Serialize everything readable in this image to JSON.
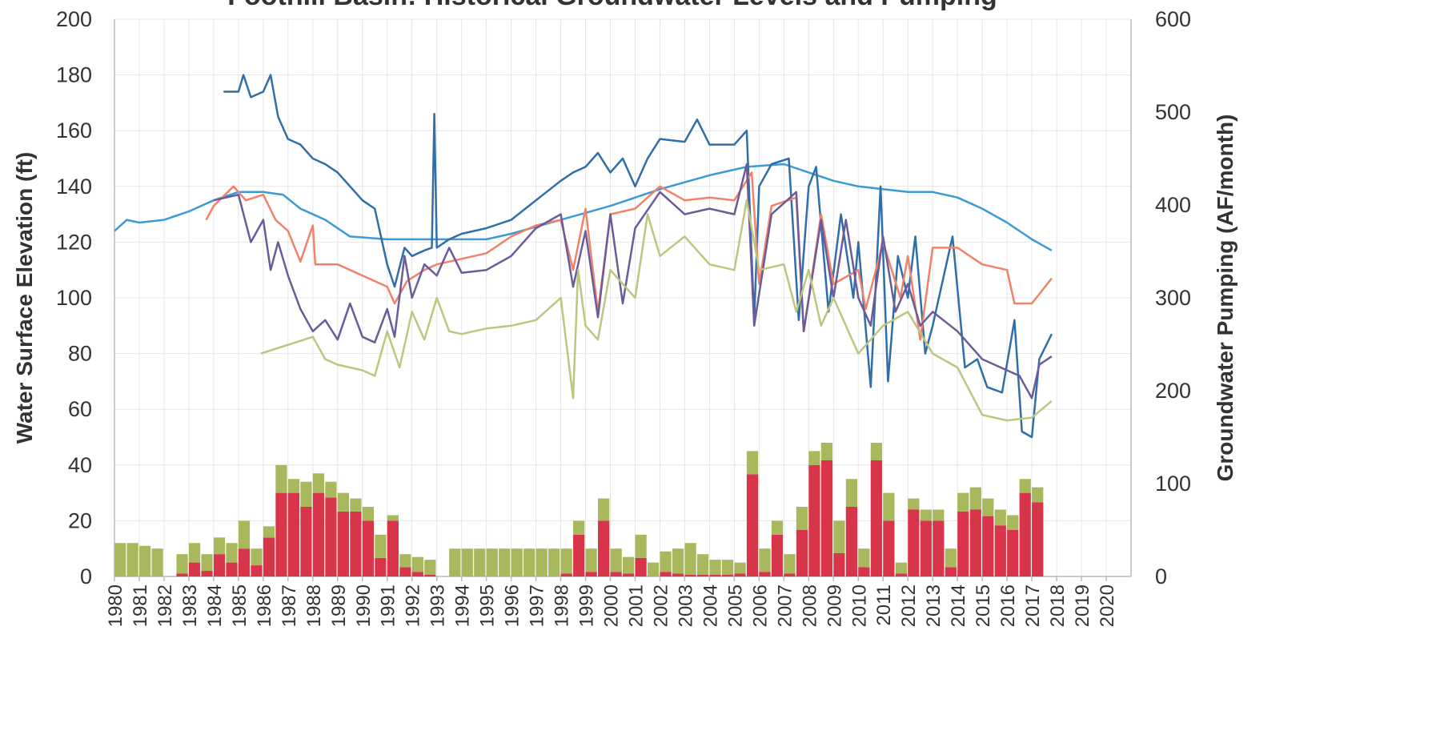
{
  "chart_data": {
    "type": "line",
    "title": "Foothill Basin: Historical Groundwater Levels and Pumping",
    "y_label": "Water Surface Elevation (ft)",
    "y2_label": "Groundwater Pumping (AF/month)",
    "xlim": [
      1980,
      2021
    ],
    "ylim": [
      0,
      200
    ],
    "y2lim": [
      0,
      600
    ],
    "xticks": [
      1980,
      1981,
      1982,
      1983,
      1984,
      1985,
      1986,
      1987,
      1988,
      1989,
      1990,
      1991,
      1992,
      1993,
      1994,
      1995,
      1996,
      1997,
      1998,
      1999,
      2000,
      2001,
      2002,
      2003,
      2004,
      2005,
      2006,
      2007,
      2008,
      2009,
      2010,
      2011,
      2012,
      2013,
      2014,
      2015,
      2016,
      2017,
      2018,
      2019,
      2020
    ],
    "yticks": [
      0,
      20,
      40,
      60,
      80,
      100,
      120,
      140,
      160,
      180,
      200
    ],
    "y2ticks": [
      0,
      100,
      200,
      300,
      400,
      500,
      600
    ],
    "grid": true,
    "series": [
      {
        "type": "bar",
        "axis": "y2",
        "stacked": true,
        "color": "#d8344a",
        "x": [
          1980,
          1980.5,
          1981,
          1981.5,
          1982,
          1982.5,
          1983,
          1983.5,
          1984,
          1984.5,
          1985,
          1985.5,
          1986,
          1986.5,
          1987,
          1987.5,
          1988,
          1988.5,
          1989,
          1989.5,
          1990,
          1990.5,
          1991,
          1991.5,
          1992,
          1992.5,
          1993,
          1993.5,
          1994,
          1994.5,
          1995,
          1995.5,
          1996,
          1996.5,
          1997,
          1997.5,
          1998,
          1998.5,
          1999,
          1999.5,
          2000,
          2000.5,
          2001,
          2001.5,
          2002,
          2002.5,
          2003,
          2003.5,
          2004,
          2004.5,
          2005,
          2005.5,
          2006,
          2006.5,
          2007,
          2007.5,
          2008,
          2008.5,
          2009,
          2009.5,
          2010,
          2010.5,
          2011,
          2011.5,
          2012,
          2012.5,
          2013,
          2013.5,
          2014,
          2014.5,
          2015,
          2015.5,
          2016,
          2016.5,
          2017
        ],
        "values": [
          0,
          0,
          0,
          0,
          0,
          3,
          15,
          6,
          24,
          15,
          30,
          12,
          42,
          90,
          90,
          75,
          90,
          85,
          70,
          70,
          60,
          20,
          60,
          10,
          5,
          2,
          0,
          0,
          0,
          0,
          0,
          0,
          0,
          0,
          0,
          0,
          3,
          45,
          5,
          60,
          5,
          3,
          20,
          0,
          5,
          3,
          2,
          2,
          2,
          2,
          3,
          110,
          5,
          45,
          3,
          50,
          120,
          125,
          25,
          75,
          10,
          125,
          60,
          3,
          72,
          60,
          60,
          10,
          70,
          72,
          65,
          55,
          50,
          90,
          80
        ]
      },
      {
        "type": "bar",
        "axis": "y2",
        "stacked": true,
        "color": "#a9b85c",
        "x": [
          1980,
          1980.5,
          1981,
          1981.5,
          1982,
          1982.5,
          1983,
          1983.5,
          1984,
          1984.5,
          1985,
          1985.5,
          1986,
          1986.5,
          1987,
          1987.5,
          1988,
          1988.5,
          1989,
          1989.5,
          1990,
          1990.5,
          1991,
          1991.5,
          1992,
          1992.5,
          1993,
          1993.5,
          1994,
          1994.5,
          1995,
          1995.5,
          1996,
          1996.5,
          1997,
          1997.5,
          1998,
          1998.5,
          1999,
          1999.5,
          2000,
          2000.5,
          2001,
          2001.5,
          2002,
          2002.5,
          2003,
          2003.5,
          2004,
          2004.5,
          2005,
          2005.5,
          2006,
          2006.5,
          2007,
          2007.5,
          2008,
          2008.5,
          2009,
          2009.5,
          2010,
          2010.5,
          2011,
          2011.5,
          2012,
          2012.5,
          2013,
          2013.5,
          2014,
          2014.5,
          2015,
          2015.5,
          2016,
          2016.5,
          2017
        ],
        "values": [
          36,
          36,
          33,
          30,
          0,
          21,
          21,
          18,
          18,
          21,
          30,
          18,
          12,
          30,
          15,
          27,
          21,
          17,
          20,
          14,
          15,
          25,
          6,
          14,
          16,
          16,
          0,
          30,
          30,
          30,
          30,
          30,
          30,
          30,
          30,
          30,
          27,
          15,
          25,
          24,
          25,
          18,
          25,
          15,
          22,
          27,
          34,
          22,
          16,
          16,
          12,
          25,
          25,
          15,
          21,
          25,
          15,
          19,
          35,
          30,
          20,
          19,
          30,
          12,
          12,
          12,
          12,
          20,
          20,
          24,
          19,
          17,
          16,
          15,
          16
        ]
      },
      {
        "type": "line",
        "color": "#3b9ad6",
        "x": [
          1980,
          1980.5,
          1981,
          1982,
          1983,
          1984,
          1985,
          1986,
          1986.8,
          1987.5,
          1988.5,
          1989.5,
          1991,
          1993,
          1995,
          1996,
          1998,
          2000,
          2002,
          2004,
          2005.5,
          2007,
          2008,
          2009,
          2010,
          2012,
          2013,
          2014,
          2015,
          2016,
          2017,
          2017.8
        ],
        "values": [
          124,
          128,
          127,
          128,
          131,
          135,
          138,
          138,
          137,
          132,
          128,
          122,
          121,
          121,
          121,
          123,
          128,
          133,
          139,
          144,
          147,
          148,
          145,
          142,
          140,
          138,
          138,
          136,
          132,
          127,
          121,
          117
        ]
      },
      {
        "type": "line",
        "color": "#2f6ea8",
        "x": [
          1984.4,
          1985,
          1985.2,
          1985.5,
          1986,
          1986.3,
          1986.6,
          1987,
          1987.5,
          1988,
          1988.5,
          1989,
          1989.5,
          1990,
          1990.5,
          1991,
          1991.3,
          1991.7,
          1992,
          1992.5,
          1992.8,
          1992.9,
          1993,
          1993.5,
          1994,
          1995,
          1996,
          1997,
          1998,
          1998.5,
          1999,
          1999.5,
          2000,
          2000.5,
          2001,
          2001.5,
          2002,
          2003,
          2003.5,
          2004,
          2005,
          2005.5,
          2005.8,
          2006,
          2006.5,
          2007.2,
          2007.6,
          2008,
          2008.3,
          2008.8,
          2009.3,
          2009.8,
          2010,
          2010.5,
          2010.9,
          2011.2,
          2011.6,
          2012,
          2012.3,
          2012.7,
          2013,
          2013.8,
          2014.3,
          2014.8,
          2015.2,
          2015.8,
          2016.3,
          2016.6,
          2017,
          2017.3,
          2017.8
        ],
        "values": [
          174,
          174,
          180,
          172,
          174,
          180,
          165,
          157,
          155,
          150,
          148,
          145,
          140,
          135,
          132,
          112,
          104,
          118,
          115,
          117,
          118,
          166,
          118,
          121,
          123,
          125,
          128,
          135,
          142,
          145,
          147,
          152,
          145,
          150,
          140,
          150,
          157,
          156,
          164,
          155,
          155,
          160,
          92,
          140,
          148,
          150,
          92,
          140,
          147,
          95,
          130,
          100,
          120,
          68,
          140,
          70,
          115,
          100,
          122,
          80,
          90,
          122,
          75,
          78,
          68,
          66,
          92,
          52,
          50,
          78,
          87
        ]
      },
      {
        "type": "line",
        "color": "#f0826a",
        "x": [
          1983.7,
          1984,
          1984.8,
          1985.3,
          1986,
          1986.5,
          1987,
          1987.5,
          1988,
          1988.1,
          1989,
          1990,
          1991,
          1991.3,
          1991.8,
          1992.5,
          1993,
          1994,
          1995,
          1996,
          1997,
          1998,
          1998.5,
          1999,
          1999.5,
          2000,
          2001,
          2002,
          2003,
          2004,
          2005,
          2005.7,
          2006,
          2006.5,
          2007.5,
          2007.8,
          2008.5,
          2009,
          2010,
          2010.3,
          2011,
          2011.7,
          2012,
          2012.5,
          2013,
          2014,
          2015,
          2016,
          2016.3,
          2017,
          2017.8
        ],
        "values": [
          128,
          133,
          140,
          135,
          137,
          128,
          124,
          113,
          126,
          112,
          112,
          108,
          104,
          98,
          106,
          110,
          112,
          114,
          116,
          122,
          126,
          128,
          110,
          132,
          95,
          130,
          132,
          140,
          135,
          136,
          135,
          145,
          105,
          133,
          136,
          88,
          130,
          105,
          110,
          96,
          120,
          100,
          115,
          85,
          118,
          118,
          112,
          110,
          98,
          98,
          107
        ]
      },
      {
        "type": "line",
        "color": "#6b5b9b",
        "x": [
          1984,
          1985,
          1985.5,
          1986,
          1986.3,
          1986.6,
          1987,
          1987.5,
          1988,
          1988.5,
          1989,
          1989.5,
          1990,
          1990.5,
          1991,
          1991.3,
          1991.7,
          1992,
          1992.5,
          1993,
          1993.5,
          1994,
          1995,
          1996,
          1997,
          1998,
          1998.5,
          1999,
          1999.5,
          2000,
          2000.5,
          2001,
          2002,
          2003,
          2004,
          2005,
          2005.5,
          2005.8,
          2006.5,
          2007.5,
          2007.8,
          2008.5,
          2009,
          2009.5,
          2010,
          2010.5,
          2011,
          2011.5,
          2012,
          2012.5,
          2013,
          2014,
          2015,
          2016,
          2016.5,
          2017,
          2017.3,
          2017.8
        ],
        "values": [
          135,
          137,
          120,
          128,
          110,
          120,
          108,
          96,
          88,
          92,
          85,
          98,
          86,
          84,
          96,
          86,
          115,
          100,
          112,
          108,
          118,
          109,
          110,
          115,
          125,
          130,
          104,
          124,
          93,
          130,
          98,
          125,
          138,
          130,
          132,
          130,
          148,
          90,
          130,
          138,
          88,
          128,
          100,
          128,
          100,
          90,
          122,
          95,
          105,
          90,
          95,
          88,
          78,
          74,
          72,
          64,
          76,
          79
        ]
      },
      {
        "type": "line",
        "color": "#bcc67e",
        "x": [
          1985.9,
          1988,
          1988.5,
          1989,
          1990,
          1990.5,
          1991,
          1991.5,
          1992,
          1992.5,
          1993,
          1993.5,
          1994,
          1995,
          1996,
          1997,
          1998,
          1998.5,
          1998.7,
          1999,
          1999.5,
          2000,
          2001,
          2001.5,
          2002,
          2003,
          2004,
          2005,
          2005.5,
          2006,
          2007,
          2007.5,
          2008,
          2008.5,
          2009,
          2010,
          2011,
          2012,
          2013,
          2014,
          2015,
          2016,
          2017,
          2017.8
        ],
        "values": [
          80,
          86,
          78,
          76,
          74,
          72,
          88,
          75,
          95,
          85,
          100,
          88,
          87,
          89,
          90,
          92,
          100,
          64,
          110,
          90,
          85,
          110,
          100,
          130,
          115,
          122,
          112,
          110,
          135,
          110,
          112,
          95,
          110,
          90,
          100,
          80,
          90,
          95,
          80,
          75,
          58,
          56,
          57,
          63
        ]
      }
    ]
  }
}
